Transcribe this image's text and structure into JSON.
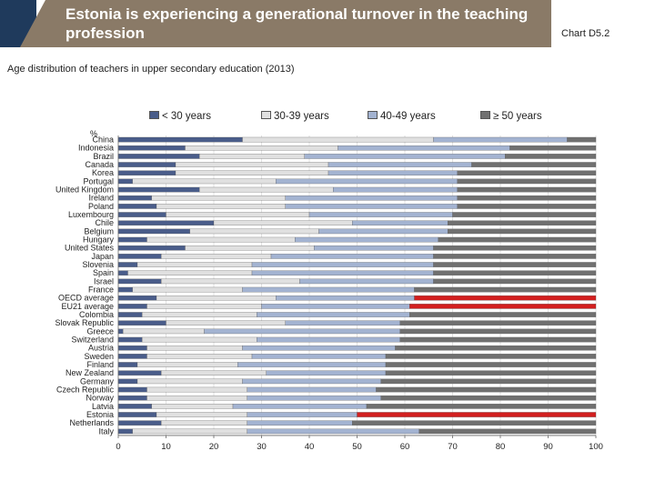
{
  "header": {
    "title": "Estonia is experiencing a generational turnover in the teaching profession",
    "chart_ref": "Chart D5.2"
  },
  "subtitle": "Age distribution of teachers in upper secondary education (2013)",
  "colors": {
    "title_bg": "#8a7a67",
    "title_accent": "#1f3a5c",
    "under30": "#4a5d8a",
    "age30_39": "#e0e0e0",
    "age40_49": "#a3b3d1",
    "age50plus": "#707070",
    "highlight": "#d21f1f"
  },
  "chart_data": {
    "type": "bar",
    "orientation": "horizontal",
    "stacked": true,
    "title": "Age distribution of teachers in upper secondary education (2013)",
    "ylabel": "%",
    "xlabel": "",
    "xlim": [
      0,
      100
    ],
    "xticks": [
      "0",
      "10",
      "20",
      "30",
      "40",
      "50",
      "60",
      "70",
      "80",
      "90",
      "100"
    ],
    "legend_position": "top",
    "highlighted": [
      "OECD average",
      "EU21 average",
      "Estonia"
    ],
    "categories": [
      "China",
      "Indonesia",
      "Brazil",
      "Canada",
      "Korea",
      "Portugal",
      "United Kingdom",
      "Ireland",
      "Poland",
      "Luxembourg",
      "Chile",
      "Belgium",
      "Hungary",
      "United States",
      "Japan",
      "Slovenia",
      "Spain",
      "Israel",
      "France",
      "OECD average",
      "EU21 average",
      "Colombia",
      "Slovak Republic",
      "Greece",
      "Switzerland",
      "Austria",
      "Sweden",
      "Finland",
      "New Zealand",
      "Germany",
      "Czech Republic",
      "Norway",
      "Latvia",
      "Estonia",
      "Netherlands",
      "Italy"
    ],
    "series": [
      {
        "name": "< 30 years",
        "values": [
          26,
          14,
          17,
          12,
          12,
          3,
          17,
          7,
          8,
          10,
          20,
          15,
          6,
          14,
          9,
          4,
          2,
          9,
          3,
          8,
          6,
          5,
          10,
          1,
          5,
          6,
          6,
          4,
          9,
          4,
          6,
          6,
          7,
          8,
          9,
          3
        ]
      },
      {
        "name": "30-39 years",
        "values": [
          40,
          32,
          22,
          32,
          32,
          30,
          28,
          28,
          27,
          30,
          29,
          27,
          31,
          27,
          23,
          24,
          26,
          29,
          23,
          25,
          24,
          24,
          25,
          17,
          24,
          20,
          22,
          21,
          22,
          22,
          21,
          21,
          17,
          19,
          18,
          24
        ]
      },
      {
        "name": "40-49 years",
        "values": [
          28,
          36,
          42,
          30,
          27,
          38,
          26,
          36,
          36,
          30,
          20,
          27,
          30,
          25,
          34,
          38,
          38,
          28,
          36,
          29,
          31,
          32,
          24,
          41,
          30,
          32,
          28,
          31,
          25,
          29,
          27,
          28,
          28,
          23,
          22,
          36
        ]
      },
      {
        "name": "≥ 50 years",
        "values": [
          6,
          18,
          19,
          26,
          29,
          29,
          29,
          29,
          29,
          30,
          31,
          31,
          33,
          34,
          34,
          34,
          34,
          34,
          38,
          38,
          39,
          39,
          41,
          41,
          41,
          42,
          44,
          44,
          44,
          45,
          46,
          45,
          48,
          50,
          51,
          37
        ]
      }
    ]
  }
}
